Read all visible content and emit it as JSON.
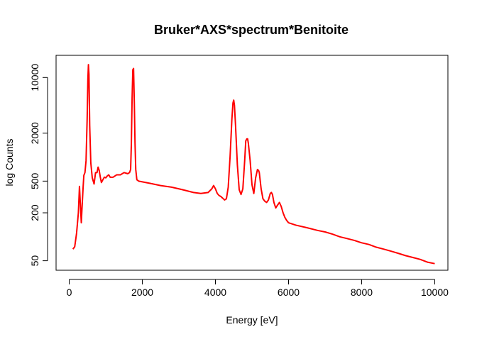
{
  "chart_data": {
    "type": "line",
    "title": "Bruker*AXS*spectrum*Benitoite",
    "xlabel": "Energy [eV]",
    "ylabel": "log Counts",
    "x_ticks": [
      0,
      2000,
      4000,
      6000,
      8000,
      10000
    ],
    "x_tick_labels": [
      "0",
      "2000",
      "4000",
      "6000",
      "8000",
      "10000"
    ],
    "y_scale": "log",
    "y_ticks": [
      50,
      200,
      500,
      2000,
      10000
    ],
    "y_tick_labels": [
      "50",
      "200",
      "500",
      "2000",
      "10000"
    ],
    "xlim": [
      -360,
      10360
    ],
    "ylim": [
      38,
      19000
    ],
    "grid": false,
    "legend": "none",
    "series": [
      {
        "color": "#ff0000",
        "x": [
          100,
          150,
          200,
          250,
          280,
          300,
          330,
          350,
          380,
          400,
          430,
          460,
          490,
          510,
          525,
          540,
          560,
          590,
          630,
          680,
          720,
          760,
          790,
          820,
          850,
          880,
          920,
          960,
          1000,
          1040,
          1080,
          1120,
          1200,
          1300,
          1400,
          1500,
          1600,
          1650,
          1680,
          1700,
          1720,
          1740,
          1760,
          1780,
          1800,
          1820,
          1850,
          1900,
          2000,
          2200,
          2500,
          2800,
          3000,
          3200,
          3400,
          3600,
          3800,
          3900,
          3950,
          4000,
          4050,
          4100,
          4150,
          4200,
          4250,
          4300,
          4350,
          4400,
          4450,
          4480,
          4500,
          4520,
          4550,
          4600,
          4650,
          4700,
          4750,
          4800,
          4830,
          4860,
          4880,
          4900,
          4950,
          5000,
          5050,
          5100,
          5150,
          5180,
          5200,
          5250,
          5300,
          5350,
          5400,
          5450,
          5500,
          5530,
          5560,
          5600,
          5650,
          5700,
          5750,
          5800,
          5850,
          5900,
          5950,
          6000,
          6200,
          6500,
          6800,
          7000,
          7200,
          7400,
          7600,
          7800,
          8000,
          8200,
          8400,
          8600,
          8800,
          9000,
          9200,
          9400,
          9600,
          9800,
          10000
        ],
        "y": [
          70,
          75,
          110,
          200,
          430,
          280,
          150,
          230,
          420,
          590,
          640,
          900,
          3000,
          9500,
          14500,
          11000,
          2500,
          850,
          550,
          460,
          640,
          640,
          750,
          680,
          560,
          480,
          520,
          560,
          550,
          580,
          600,
          560,
          560,
          600,
          600,
          640,
          620,
          640,
          700,
          1500,
          5500,
          12500,
          13000,
          5000,
          1500,
          700,
          520,
          500,
          490,
          470,
          440,
          420,
          400,
          380,
          360,
          350,
          360,
          400,
          440,
          400,
          350,
          330,
          320,
          305,
          290,
          300,
          420,
          1000,
          3000,
          4800,
          5200,
          4500,
          2500,
          800,
          390,
          340,
          400,
          900,
          1600,
          1700,
          1700,
          1500,
          900,
          450,
          350,
          550,
          700,
          680,
          640,
          400,
          300,
          280,
          270,
          290,
          350,
          360,
          340,
          270,
          230,
          250,
          270,
          240,
          200,
          175,
          160,
          150,
          140,
          130,
          120,
          115,
          108,
          100,
          95,
          90,
          84,
          80,
          74,
          70,
          66,
          62,
          58,
          55,
          52,
          48,
          46
        ]
      }
    ]
  }
}
